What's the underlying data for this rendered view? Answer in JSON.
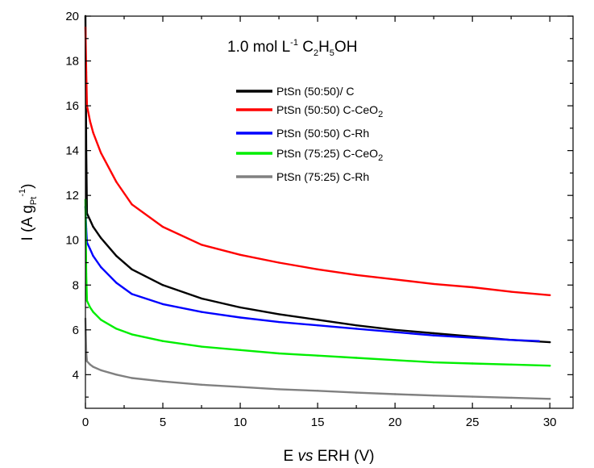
{
  "chart_data": {
    "type": "line",
    "xlabel": {
      "pre": "E ",
      "italic": "vs",
      "post": " ERH (V)"
    },
    "ylabel": {
      "main": "I (A g",
      "sub": "Pt",
      "sup": "-1",
      "close": ")"
    },
    "annotation": {
      "pre": "1.0 mol L",
      "sup": "-1",
      "c": " C",
      "sub1": "2",
      "h": "H",
      "sub2": "5",
      "oh": "OH"
    },
    "xlim": [
      0,
      31.5
    ],
    "ylim": [
      2.5,
      20
    ],
    "x_ticks": [
      0,
      5,
      10,
      15,
      20,
      25,
      30
    ],
    "y_ticks": [
      4,
      6,
      8,
      10,
      12,
      14,
      16,
      18,
      20
    ],
    "legend_position": "upper-center",
    "grid": false,
    "series": [
      {
        "name": "PtSn (50:50)/ C",
        "name_sub": "",
        "color": "#000000",
        "x": [
          0,
          0.05,
          0.1,
          0.3,
          0.5,
          1,
          2,
          3,
          5,
          7.5,
          10,
          12.5,
          15,
          17.5,
          20,
          22.5,
          25,
          27.5,
          30
        ],
        "y": [
          20,
          14,
          11.2,
          10.9,
          10.6,
          10.1,
          9.3,
          8.7,
          8.0,
          7.4,
          7.0,
          6.7,
          6.45,
          6.2,
          6.0,
          5.85,
          5.7,
          5.55,
          5.45
        ]
      },
      {
        "name": "PtSn (50:50)  C-CeO",
        "name_sub": "2",
        "color": "#ff0000",
        "x": [
          0,
          0.05,
          0.1,
          0.3,
          0.5,
          1,
          2,
          3,
          5,
          7.5,
          10,
          12.5,
          15,
          17.5,
          20,
          22.5,
          25,
          27.5,
          30
        ],
        "y": [
          19.5,
          17.5,
          16.0,
          15.3,
          14.8,
          13.9,
          12.6,
          11.6,
          10.6,
          9.8,
          9.35,
          9.0,
          8.7,
          8.45,
          8.25,
          8.05,
          7.9,
          7.7,
          7.55
        ]
      },
      {
        "name": "PtSn (50:50) C-Rh",
        "name_sub": "",
        "color": "#0000ff",
        "x": [
          0,
          0.05,
          0.1,
          0.3,
          0.5,
          1,
          2,
          3,
          5,
          7.5,
          10,
          12.5,
          15,
          17.5,
          20,
          22.5,
          25,
          27.5,
          29.3
        ],
        "y": [
          11.5,
          10.5,
          9.9,
          9.6,
          9.3,
          8.8,
          8.1,
          7.6,
          7.15,
          6.8,
          6.55,
          6.35,
          6.2,
          6.05,
          5.9,
          5.75,
          5.65,
          5.55,
          5.5
        ]
      },
      {
        "name": "PtSn (75:25) C-CeO",
        "name_sub": "2",
        "color": "#00ee00",
        "x": [
          0,
          0.05,
          0.1,
          0.3,
          0.5,
          1,
          2,
          3,
          5,
          7.5,
          10,
          12.5,
          15,
          17.5,
          20,
          22.5,
          25,
          27.5,
          30
        ],
        "y": [
          11.8,
          8.5,
          7.3,
          7.0,
          6.8,
          6.45,
          6.05,
          5.8,
          5.5,
          5.25,
          5.1,
          4.95,
          4.85,
          4.75,
          4.65,
          4.55,
          4.5,
          4.45,
          4.4
        ]
      },
      {
        "name": "PtSn (75:25) C-Rh",
        "name_sub": "",
        "color": "#808080",
        "x": [
          0,
          0.05,
          0.1,
          0.3,
          0.5,
          1,
          2,
          3,
          5,
          7.5,
          10,
          12.5,
          15,
          17.5,
          20,
          22.5,
          25,
          27.5,
          30
        ],
        "y": [
          6.5,
          5.0,
          4.6,
          4.45,
          4.35,
          4.2,
          4.0,
          3.85,
          3.7,
          3.55,
          3.45,
          3.35,
          3.28,
          3.2,
          3.13,
          3.07,
          3.02,
          2.97,
          2.92
        ]
      }
    ]
  }
}
